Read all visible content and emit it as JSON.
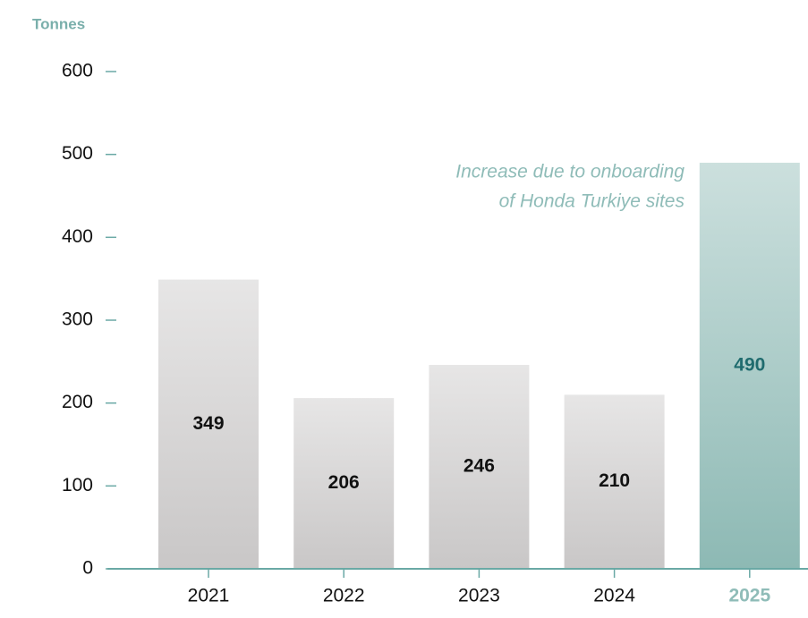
{
  "chart_data": {
    "type": "bar",
    "y_label": "Tonnes",
    "categories": [
      "2021",
      "2022",
      "2023",
      "2024",
      "2025"
    ],
    "values": [
      349,
      206,
      246,
      210,
      490
    ],
    "colors": [
      "#c9c7c7",
      "#c9c7c7",
      "#c9c7c7",
      "#c9c7c7",
      "#8db9b4"
    ],
    "highlight_color": "#8fbcb8",
    "highlight_label_color": "#1f6b6e",
    "annotation": [
      "Increase due to onboarding",
      "of Honda Turkiye sites"
    ],
    "ylim": [
      0,
      600
    ],
    "yticks": [
      0,
      100,
      200,
      300,
      400,
      500,
      600
    ]
  }
}
